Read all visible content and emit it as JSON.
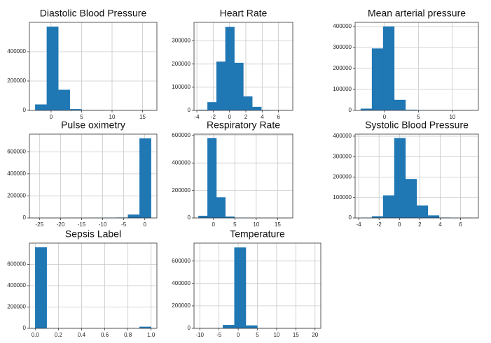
{
  "chart_data": [
    {
      "type": "histogram",
      "title": "Diastolic Blood Pressure",
      "color": "#1f77b4",
      "grid": true,
      "bins": [
        -2.6,
        -0.7,
        1.2,
        3.1,
        5.0,
        6.9,
        8.8,
        10.7,
        12.6,
        14.5,
        16.4
      ],
      "counts": [
        40000,
        570000,
        140000,
        8000,
        500,
        100,
        0,
        0,
        0,
        50
      ],
      "xlim": [
        -3.55,
        17.35
      ],
      "xticks": [
        0,
        5,
        10,
        15
      ],
      "ylim": [
        0,
        600000
      ],
      "yticks": [
        0,
        200000,
        400000
      ]
    },
    {
      "type": "histogram",
      "title": "Heart Rate",
      "color": "#1f77b4",
      "grid": true,
      "bins": [
        -3.8,
        -2.7,
        -1.6,
        -0.5,
        0.6,
        1.7,
        2.8,
        3.9,
        5.0,
        6.1,
        7.2
      ],
      "counts": [
        2000,
        35000,
        210000,
        360000,
        205000,
        60000,
        15000,
        1500,
        200,
        50
      ],
      "xlim": [
        -4.35,
        7.75
      ],
      "xticks": [
        -4,
        -2,
        0,
        2,
        4,
        6
      ],
      "ylim": [
        0,
        380000
      ],
      "yticks": [
        0,
        100000,
        200000,
        300000
      ]
    },
    {
      "type": "histogram",
      "title": "Mean arterial pressure",
      "color": "#1f77b4",
      "grid": true,
      "bins": [
        -3.5,
        -1.85,
        -0.2,
        1.45,
        3.1,
        4.75,
        6.4,
        8.05,
        9.7,
        11.35,
        13.0
      ],
      "counts": [
        8000,
        295000,
        400000,
        50000,
        3000,
        500,
        100,
        50,
        20,
        10
      ],
      "xlim": [
        -4.325,
        13.825
      ],
      "xticks": [
        0,
        5,
        10
      ],
      "ylim": [
        0,
        420000
      ],
      "yticks": [
        0,
        100000,
        200000,
        300000,
        400000
      ]
    },
    {
      "type": "histogram",
      "title": "Pulse oximetry",
      "color": "#1f77b4",
      "grid": true,
      "bins": [
        -26,
        -23.25,
        -20.5,
        -17.75,
        -15,
        -12.25,
        -9.5,
        -6.75,
        -4,
        -1.25,
        1.5
      ],
      "counts": [
        100,
        50,
        50,
        100,
        200,
        500,
        1000,
        3000,
        30000,
        720000
      ],
      "xlim": [
        -27.375,
        2.875
      ],
      "xticks": [
        -25,
        -20,
        -15,
        -10,
        -5,
        0
      ],
      "ylim": [
        0,
        760000
      ],
      "yticks": [
        0,
        200000,
        400000,
        600000
      ]
    },
    {
      "type": "histogram",
      "title": "Respiratory Rate",
      "color": "#1f77b4",
      "grid": true,
      "bins": [
        -3.5,
        -1.4,
        0.7,
        2.8,
        4.9,
        7.0,
        9.1,
        11.2,
        13.3,
        15.4,
        17.5
      ],
      "counts": [
        15000,
        580000,
        150000,
        10000,
        1000,
        300,
        100,
        50,
        20,
        10
      ],
      "xlim": [
        -4.55,
        18.55
      ],
      "xticks": [
        0,
        5,
        10,
        15
      ],
      "ylim": [
        0,
        610000
      ],
      "yticks": [
        0,
        200000,
        400000,
        600000
      ]
    },
    {
      "type": "histogram",
      "title": "Systolic Blood Pressure",
      "color": "#1f77b4",
      "grid": true,
      "bins": [
        -3.8,
        -2.7,
        -1.6,
        -0.5,
        0.6,
        1.7,
        2.8,
        3.9,
        5.0,
        6.1,
        7.2
      ],
      "counts": [
        1000,
        8000,
        110000,
        390000,
        190000,
        60000,
        12000,
        1500,
        200,
        50
      ],
      "xlim": [
        -4.35,
        7.75
      ],
      "xticks": [
        -4,
        -2,
        0,
        2,
        4,
        6
      ],
      "ylim": [
        0,
        410000
      ],
      "yticks": [
        0,
        100000,
        200000,
        300000,
        400000
      ]
    },
    {
      "type": "histogram",
      "title": "Sepsis Label",
      "color": "#1f77b4",
      "grid": true,
      "bins": [
        0,
        0.1,
        0.2,
        0.3,
        0.4,
        0.5,
        0.6,
        0.7,
        0.8,
        0.9,
        1.0
      ],
      "counts": [
        760000,
        0,
        0,
        0,
        0,
        0,
        0,
        0,
        0,
        14000
      ],
      "xlim": [
        -0.05,
        1.05
      ],
      "xticks": [
        {
          "value": 0,
          "label": "0.0"
        },
        {
          "value": 0.2,
          "label": "0.2"
        },
        {
          "value": 0.4,
          "label": "0.4"
        },
        {
          "value": 0.6,
          "label": "0.6"
        },
        {
          "value": 0.8,
          "label": "0.8"
        },
        {
          "value": 1,
          "label": "1.0"
        }
      ],
      "ylim": [
        0,
        800000
      ],
      "yticks": [
        0,
        200000,
        400000,
        600000
      ]
    },
    {
      "type": "histogram",
      "title": "Temperature",
      "color": "#1f77b4",
      "grid": true,
      "bins": [
        -10,
        -7,
        -4,
        -1,
        2,
        5,
        8,
        11,
        14,
        17,
        20
      ],
      "counts": [
        200,
        2000,
        30000,
        720000,
        25000,
        500,
        100,
        50,
        20,
        10
      ],
      "xlim": [
        -11.5,
        21.5
      ],
      "xticks": [
        -10,
        -5,
        0,
        5,
        10,
        15,
        20
      ],
      "ylim": [
        0,
        760000
      ],
      "yticks": [
        0,
        200000,
        400000,
        600000
      ]
    }
  ]
}
